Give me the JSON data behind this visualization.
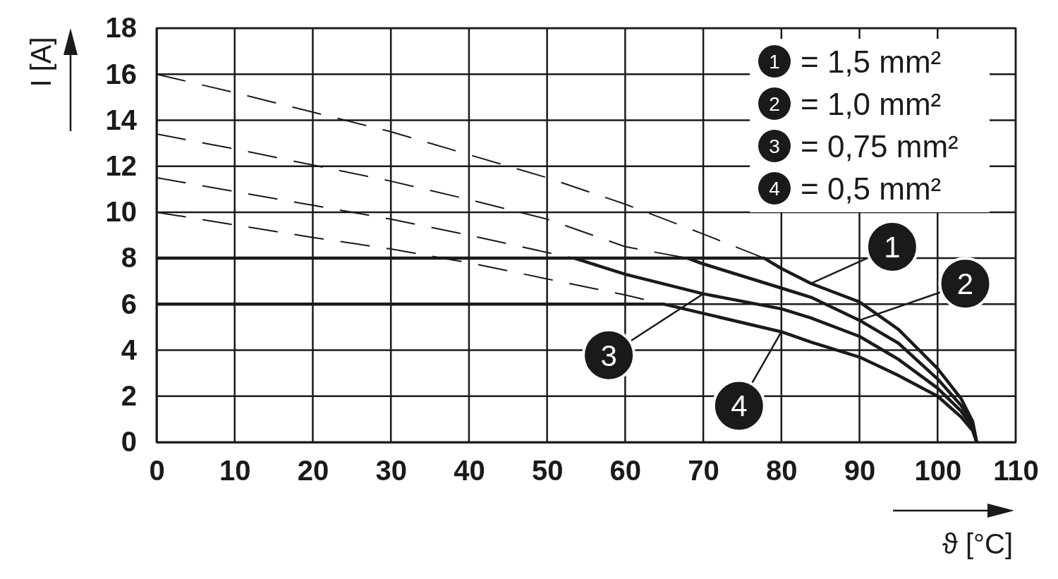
{
  "chart_data": {
    "type": "line",
    "xlabel": "ϑ [°C]",
    "ylabel": "I [A]",
    "xlim": [
      0,
      110
    ],
    "xticks": [
      0,
      10,
      20,
      30,
      40,
      50,
      60,
      70,
      80,
      90,
      100,
      110
    ],
    "ylim": [
      0,
      18
    ],
    "yticks": [
      0,
      2,
      4,
      6,
      8,
      10,
      12,
      14,
      16,
      18
    ],
    "grid": true,
    "legend": "top right",
    "annotations": [
      "= 1,5 mm²",
      "= 1,0 mm²",
      "= 0,75 mm²",
      "= 0,5 mm²"
    ],
    "series": [
      {
        "color": "#1a1a1a",
        "line_style": "dashed",
        "x": [
          0,
          10,
          20,
          30,
          40,
          50,
          60,
          70,
          77.8
        ],
        "values": [
          16,
          15.2,
          14.35,
          13.5,
          12.5,
          11.5,
          10.35,
          9.05,
          8
        ]
      },
      {
        "color": "#1a1a1a",
        "line_style": "dashed",
        "x": [
          0,
          10,
          20,
          30,
          40,
          50,
          60,
          68
        ],
        "values": [
          13.4,
          12.75,
          12.05,
          11.35,
          10.55,
          9.7,
          8.5,
          8
        ]
      },
      {
        "color": "#1a1a1a",
        "line_style": "dashed",
        "x": [
          0,
          10,
          20,
          30,
          40,
          50,
          53.5
        ],
        "values": [
          11.5,
          10.9,
          10.3,
          9.7,
          9,
          8.25,
          8
        ]
      },
      {
        "color": "#1a1a1a",
        "line_style": "dashed",
        "x": [
          0,
          10,
          20,
          30,
          40,
          50,
          60,
          65
        ],
        "values": [
          10,
          9.45,
          8.9,
          8.4,
          7.8,
          7.1,
          6.4,
          6
        ]
      },
      {
        "name": "1",
        "color": "#1a1a1a",
        "line_style": "solid",
        "x": [
          0,
          77.8,
          80,
          83.8,
          90,
          95,
          100,
          103,
          104.5,
          105
        ],
        "values": [
          8,
          8,
          7.55,
          6.9,
          6.1,
          4.9,
          3.2,
          1.9,
          0.9,
          0
        ]
      },
      {
        "name": "2",
        "color": "#1a1a1a",
        "line_style": "solid",
        "x": [
          68,
          70,
          80,
          83.8,
          90,
          95,
          100,
          103,
          104.5,
          105
        ],
        "values": [
          8,
          7.75,
          6.7,
          6.3,
          5.3,
          4.3,
          2.75,
          1.6,
          0.8,
          0
        ]
      },
      {
        "name": "3",
        "color": "#1a1a1a",
        "line_style": "solid",
        "x": [
          53.5,
          60,
          70,
          80,
          83.8,
          90,
          95,
          100,
          103,
          104.5,
          105
        ],
        "values": [
          8,
          7.3,
          6.45,
          5.8,
          5.4,
          4.6,
          3.6,
          2.35,
          1.35,
          0.65,
          0
        ]
      },
      {
        "name": "4",
        "color": "#1a1a1a",
        "line_style": "solid",
        "x": [
          0,
          65,
          70,
          80,
          83.8,
          90,
          95,
          100,
          103,
          104.5,
          105
        ],
        "values": [
          6,
          6,
          5.6,
          4.8,
          4.35,
          3.7,
          2.9,
          2,
          1.1,
          0.5,
          0
        ]
      }
    ]
  }
}
